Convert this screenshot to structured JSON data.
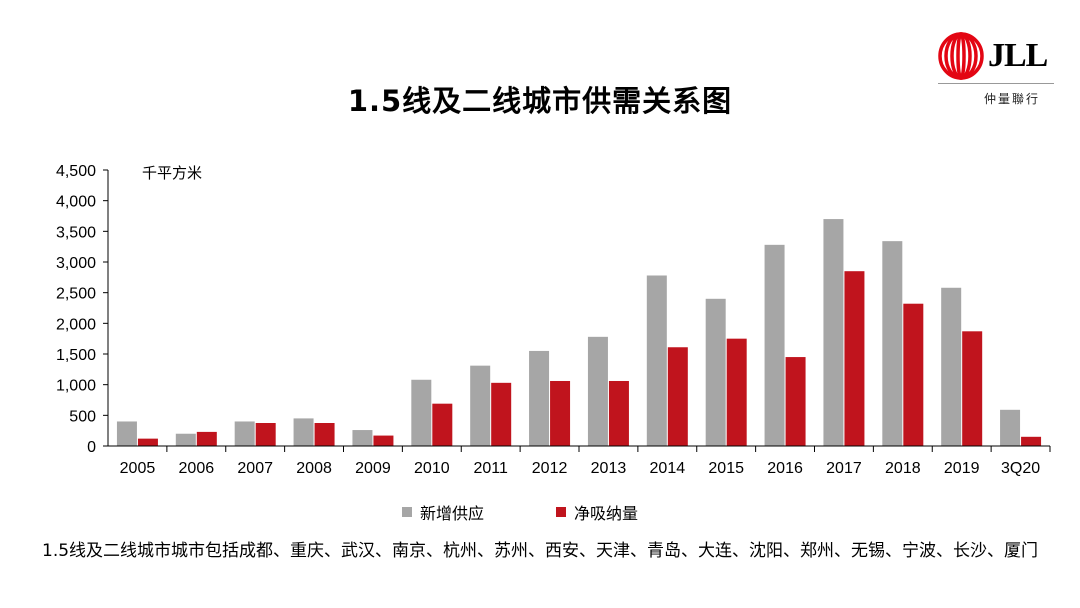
{
  "title": "1.5线及二线城市供需关系图",
  "logo": {
    "brand": "JLL",
    "sub": "仲量聯行",
    "color": "#e30613"
  },
  "note": "1.5线及二线城市城市包括成都、重庆、武汉、南京、杭州、苏州、西安、天津、青岛、大连、沈阳、郑州、无锡、宁波、长沙、厦门",
  "chart_data": {
    "type": "bar",
    "unit_label": "千平方米",
    "categories": [
      "2005",
      "2006",
      "2007",
      "2008",
      "2009",
      "2010",
      "2011",
      "2012",
      "2013",
      "2014",
      "2015",
      "2016",
      "2017",
      "2018",
      "2019",
      "3Q20"
    ],
    "series": [
      {
        "name": "新增供应",
        "color": "#a6a6a6",
        "values": [
          400,
          200,
          400,
          450,
          260,
          1080,
          1310,
          1550,
          1780,
          2780,
          2400,
          3280,
          3700,
          3340,
          2580,
          590
        ]
      },
      {
        "name": "净吸纳量",
        "color": "#c0141d",
        "values": [
          120,
          230,
          375,
          375,
          170,
          690,
          1030,
          1060,
          1060,
          1610,
          1750,
          1450,
          2850,
          2320,
          1870,
          150
        ]
      }
    ],
    "ylim": [
      0,
      4500
    ],
    "yticks": [
      0,
      500,
      1000,
      1500,
      2000,
      2500,
      3000,
      3500,
      4000,
      4500
    ],
    "ytick_labels": [
      "0",
      "500",
      "1,000",
      "1,500",
      "2,000",
      "2,500",
      "3,000",
      "3,500",
      "4,000",
      "4,500"
    ],
    "grid": false,
    "legend_position": "bottom"
  }
}
